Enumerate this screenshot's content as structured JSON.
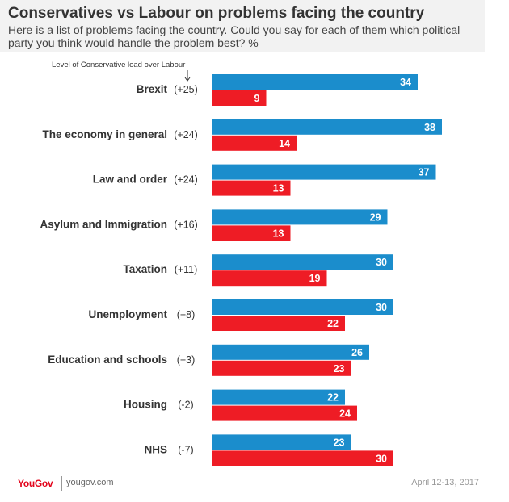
{
  "header": {
    "title": "Conservatives vs Labour on problems facing the country",
    "subtitle": "Here is a list of problems facing the country. Could you say for each of them which political party you think would handle the problem best? %"
  },
  "lead_note": "Level of Conservative lead over Labour",
  "footer": {
    "brand": "YouGov",
    "site": "yougov.com",
    "date": "April 12-13, 2017"
  },
  "colors": {
    "conservative": "#1b8dcc",
    "labour": "#ee1c25",
    "label_text": "#ffffff",
    "category_text": "#333333"
  },
  "chart_data": {
    "type": "bar",
    "orientation": "horizontal",
    "categories": [
      "Brexit",
      "The economy in general",
      "Law and order",
      "Asylum and Immigration",
      "Taxation",
      "Unemployment",
      "Education and schools",
      "Housing",
      "NHS"
    ],
    "leads": [
      "(+25)",
      "(+24)",
      "(+24)",
      "(+16)",
      "(+11)",
      "(+8)",
      "(+3)",
      "(-2)",
      "(-7)"
    ],
    "series": [
      {
        "values": [
          34,
          38,
          37,
          29,
          30,
          30,
          26,
          22,
          23
        ]
      },
      {
        "values": [
          9,
          14,
          13,
          13,
          19,
          22,
          23,
          24,
          30
        ]
      }
    ],
    "xlim": [
      0,
      38
    ]
  }
}
